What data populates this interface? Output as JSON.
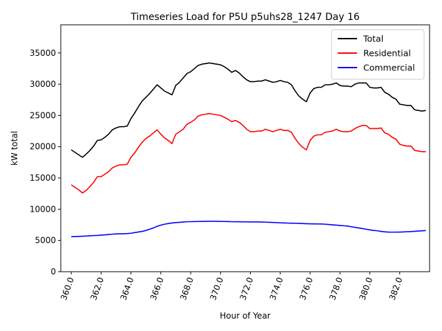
{
  "chart_data": {
    "type": "line",
    "title": "Timeseries Load for P5U p5uhs28_1247  Day 16",
    "xlabel": "Hour of Year",
    "ylabel": "kW total",
    "xlim": [
      359.3,
      384.0
    ],
    "ylim": [
      0,
      39500
    ],
    "x_ticks": [
      360,
      362,
      364,
      366,
      368,
      370,
      372,
      374,
      376,
      378,
      380,
      382
    ],
    "x_tick_labels": [
      "360.0",
      "362.0",
      "364.0",
      "366.0",
      "368.0",
      "370.0",
      "372.0",
      "374.0",
      "376.0",
      "378.0",
      "380.0",
      "382.0"
    ],
    "y_ticks": [
      0,
      5000,
      10000,
      15000,
      20000,
      25000,
      30000,
      35000
    ],
    "y_tick_labels": [
      "0",
      "5000",
      "10000",
      "15000",
      "20000",
      "25000",
      "30000",
      "35000"
    ],
    "legend_position": "upper right",
    "grid": false,
    "x": [
      360.0,
      360.25,
      360.5,
      360.75,
      361.0,
      361.25,
      361.5,
      361.75,
      362.0,
      362.25,
      362.5,
      362.75,
      363.0,
      363.25,
      363.5,
      363.75,
      364.0,
      364.25,
      364.5,
      364.75,
      365.0,
      365.25,
      365.5,
      365.75,
      366.0,
      366.25,
      366.5,
      366.75,
      367.0,
      367.25,
      367.5,
      367.75,
      368.0,
      368.25,
      368.5,
      368.75,
      369.0,
      369.25,
      369.5,
      369.75,
      370.0,
      370.25,
      370.5,
      370.75,
      371.0,
      371.25,
      371.5,
      371.75,
      372.0,
      372.25,
      372.5,
      372.75,
      373.0,
      373.25,
      373.5,
      373.75,
      374.0,
      374.25,
      374.5,
      374.75,
      375.0,
      375.25,
      375.5,
      375.75,
      376.0,
      376.25,
      376.5,
      376.75,
      377.0,
      377.25,
      377.5,
      377.75,
      378.0,
      378.25,
      378.5,
      378.75,
      379.0,
      379.25,
      379.5,
      379.75,
      380.0,
      380.25,
      380.5,
      380.75,
      381.0,
      381.25,
      381.5,
      381.75,
      382.0,
      382.25,
      382.5,
      382.75,
      383.0,
      383.25,
      383.5,
      383.75
    ],
    "series": [
      {
        "name": "Total",
        "color": "#000000",
        "values": [
          19500,
          19100,
          18700,
          18300,
          18800,
          19400,
          20100,
          21000,
          21100,
          21500,
          22000,
          22700,
          23000,
          23200,
          23200,
          23300,
          24500,
          25400,
          26400,
          27300,
          27900,
          28500,
          29200,
          29900,
          29400,
          28900,
          28600,
          28300,
          29800,
          30300,
          31000,
          31700,
          32000,
          32500,
          33000,
          33200,
          33300,
          33400,
          33300,
          33200,
          33100,
          32800,
          32400,
          31900,
          32200,
          31800,
          31200,
          30700,
          30400,
          30400,
          30500,
          30500,
          30700,
          30500,
          30300,
          30400,
          30600,
          30400,
          30300,
          29900,
          28900,
          28100,
          27600,
          27200,
          28600,
          29300,
          29500,
          29500,
          29900,
          29900,
          30000,
          30200,
          29800,
          29700,
          29700,
          29600,
          30000,
          30200,
          30200,
          30200,
          29500,
          29400,
          29400,
          29500,
          28700,
          28400,
          27900,
          27600,
          26800,
          26700,
          26600,
          26600,
          25900,
          25800,
          25700,
          25800
        ]
      },
      {
        "name": "Residential",
        "color": "#ff0000",
        "values": [
          13900,
          13500,
          13100,
          12600,
          13000,
          13600,
          14300,
          15200,
          15200,
          15600,
          16000,
          16600,
          16900,
          17100,
          17100,
          17200,
          18300,
          19000,
          19900,
          20700,
          21300,
          21700,
          22200,
          22700,
          22000,
          21400,
          21000,
          20500,
          22000,
          22400,
          22800,
          23600,
          23900,
          24300,
          24900,
          25100,
          25200,
          25300,
          25200,
          25100,
          25000,
          24700,
          24400,
          24000,
          24200,
          23900,
          23400,
          22800,
          22400,
          22400,
          22500,
          22500,
          22800,
          22600,
          22400,
          22600,
          22800,
          22600,
          22600,
          22300,
          21300,
          20500,
          19900,
          19500,
          21000,
          21700,
          21900,
          21900,
          22300,
          22400,
          22500,
          22800,
          22500,
          22400,
          22400,
          22500,
          22900,
          23200,
          23400,
          23400,
          22900,
          22900,
          22900,
          23000,
          22200,
          22000,
          21500,
          21200,
          20400,
          20200,
          20100,
          20100,
          19400,
          19300,
          19200,
          19200
        ]
      },
      {
        "name": "Commercial",
        "color": "#0000ff",
        "values": [
          5600,
          5620,
          5650,
          5680,
          5700,
          5740,
          5780,
          5800,
          5850,
          5900,
          5950,
          6000,
          6050,
          6060,
          6080,
          6100,
          6150,
          6250,
          6350,
          6450,
          6600,
          6800,
          7000,
          7250,
          7450,
          7600,
          7700,
          7800,
          7850,
          7900,
          7950,
          8000,
          8000,
          8020,
          8040,
          8050,
          8060,
          8070,
          8070,
          8060,
          8050,
          8040,
          8020,
          8000,
          7990,
          7990,
          7980,
          7980,
          7970,
          7970,
          7960,
          7950,
          7930,
          7900,
          7880,
          7850,
          7820,
          7800,
          7780,
          7760,
          7750,
          7730,
          7700,
          7680,
          7660,
          7650,
          7640,
          7630,
          7600,
          7550,
          7500,
          7450,
          7400,
          7350,
          7300,
          7200,
          7100,
          7000,
          6900,
          6800,
          6700,
          6600,
          6550,
          6450,
          6380,
          6340,
          6330,
          6330,
          6340,
          6360,
          6400,
          6420,
          6460,
          6500,
          6540,
          6580
        ]
      }
    ]
  }
}
